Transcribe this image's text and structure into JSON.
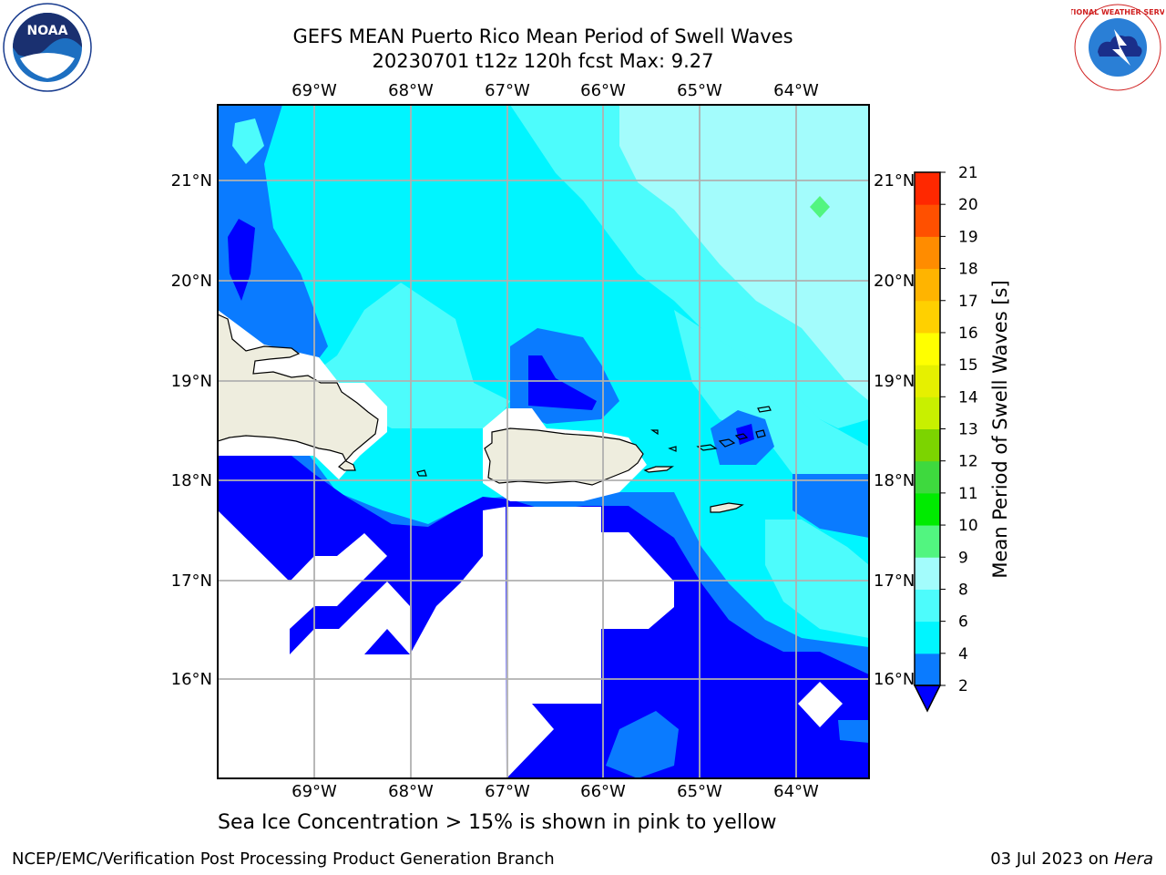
{
  "header": {
    "title_line1": "GEFS MEAN Puerto Rico Mean Period of Swell Waves",
    "title_line2": "20230701 t12z 120h fcst   Max: 9.27"
  },
  "logos": {
    "left": "noaa-logo",
    "right": "national-weather-service-logo",
    "left_text": "NOAA",
    "right_text": "NATIONAL WEATHER SERVICE"
  },
  "map": {
    "lon_labels": [
      "69°W",
      "68°W",
      "67°W",
      "66°W",
      "65°W",
      "64°W"
    ],
    "lat_labels": [
      "21°N",
      "20°N",
      "19°N",
      "18°N",
      "17°N",
      "16°N"
    ],
    "colors": {
      "land": "#eeedde",
      "coast": "#000000",
      "grid": "#b0b0b0",
      "no_data": "#ffffff"
    }
  },
  "colorbar": {
    "label": "Mean Period of Swell Waves [s]",
    "ticks": [
      "2",
      "4",
      "6",
      "8",
      "9",
      "10",
      "11",
      "12",
      "13",
      "14",
      "15",
      "16",
      "17",
      "18",
      "19",
      "20",
      "21"
    ],
    "colors": [
      "#0000ff",
      "#0a7bff",
      "#00f5ff",
      "#4dfcfc",
      "#a3fcfc",
      "#52f580",
      "#00eb00",
      "#3ed93e",
      "#7cd400",
      "#c8f000",
      "#e6f000",
      "#ffff00",
      "#ffd000",
      "#ffb400",
      "#ff8c00",
      "#ff5000",
      "#ff2800",
      "#ff0000"
    ]
  },
  "subtitle": "Sea Ice Concentration > 15% is shown in pink to yellow",
  "footer": {
    "left": "NCEP/EMC/Verification Post Processing Product Generation Branch",
    "right_date": "03 Jul 2023 on",
    "right_host": "Hera"
  }
}
